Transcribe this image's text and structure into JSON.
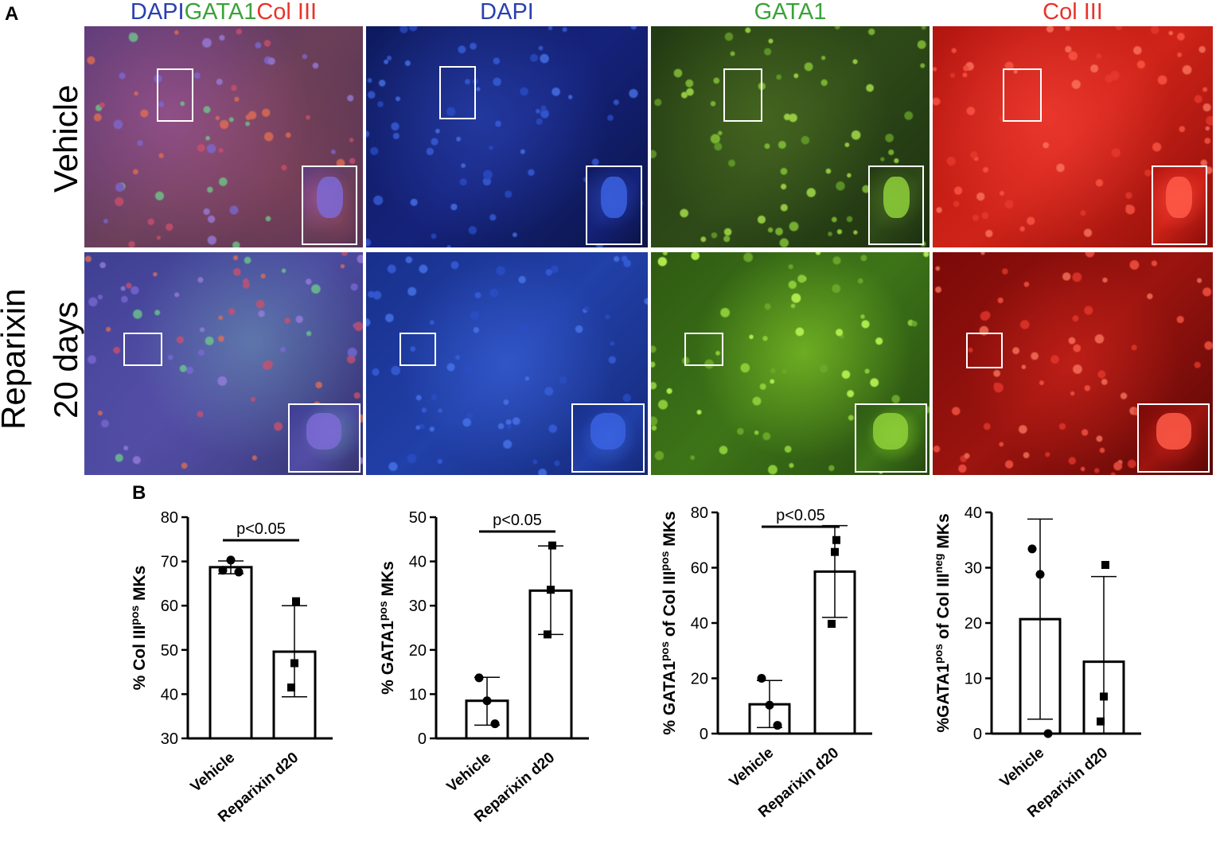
{
  "panel_a_label": "A",
  "panel_b_label": "B",
  "headers": {
    "merge": {
      "dapi": "DAPI",
      "gata1": "GATA1",
      "col": "Col III"
    },
    "dapi": "DAPI",
    "gata1": "GATA1",
    "col": "Col III"
  },
  "channel_colors": {
    "dapi": "#2a3fb0",
    "gata1": "#3aa23a",
    "col": "#e8342a"
  },
  "rows": {
    "vehicle": "Vehicle",
    "reparixin_line1": "Reparixin",
    "reparixin_line2": "20 days"
  },
  "chart_data": [
    {
      "type": "bar",
      "title": "",
      "categories": [
        "Vehicle",
        "Reparixin d20"
      ],
      "values": [
        68.7,
        49.6
      ],
      "error_low": [
        67.2,
        39.4
      ],
      "error_high": [
        70.1,
        60.0
      ],
      "points": [
        [
          68.0,
          70.3,
          67.6
        ],
        [
          61.0,
          47.0,
          41.5
        ]
      ],
      "ylim": [
        30,
        80
      ],
      "yticks": [
        "30",
        "40",
        "50",
        "60",
        "70",
        "80"
      ],
      "ylabel_pre": "% Col III",
      "ylabel_sup": "pos",
      "ylabel_post": " MKs",
      "significance": "p<0.05"
    },
    {
      "type": "bar",
      "title": "",
      "categories": [
        "Vehicle",
        "Reparixin d20"
      ],
      "values": [
        8.5,
        33.4
      ],
      "error_low": [
        3.0,
        23.5
      ],
      "error_high": [
        13.8,
        43.5
      ],
      "points": [
        [
          13.7,
          8.5,
          3.3
        ],
        [
          43.6,
          33.6,
          23.5
        ]
      ],
      "ylim": [
        0,
        50
      ],
      "yticks": [
        "0",
        "10",
        "20",
        "30",
        "40",
        "50"
      ],
      "ylabel_pre": "% GATA1",
      "ylabel_sup": "pos",
      "ylabel_post": " MKs",
      "significance": "p<0.05"
    },
    {
      "type": "bar",
      "title": "",
      "categories": [
        "Vehicle",
        "Reparixin d20"
      ],
      "values": [
        10.6,
        58.6
      ],
      "error_low": [
        2.2,
        42.0
      ],
      "error_high": [
        19.2,
        75.2
      ],
      "points": [
        [
          20.0,
          10.3,
          3.0
        ],
        [
          70.0,
          65.7,
          39.7
        ]
      ],
      "ylim": [
        0,
        80
      ],
      "yticks": [
        "0",
        "20",
        "40",
        "60",
        "80"
      ],
      "ylabel_pre": "% GATA1",
      "ylabel_sup": "pos",
      "ylabel_post": " of Col III",
      "ylabel_sup2": "pos",
      "ylabel_post2": " MKs",
      "significance": "p<0.05"
    },
    {
      "type": "bar",
      "title": "",
      "categories": [
        "Vehicle",
        "Reparixin d20"
      ],
      "values": [
        20.7,
        13.0
      ],
      "error_low": [
        2.6,
        0
      ],
      "error_high": [
        38.8,
        28.4
      ],
      "points": [
        [
          33.4,
          28.8,
          0.0
        ],
        [
          30.5,
          6.7,
          2.2
        ]
      ],
      "ylim": [
        0,
        40
      ],
      "yticks": [
        "0",
        "10",
        "20",
        "30",
        "40"
      ],
      "ylabel_pre": "%GATA1",
      "ylabel_sup": "pos",
      "ylabel_post": " of Col III",
      "ylabel_sup2": "neg",
      "ylabel_post2": " MKs",
      "significance": ""
    }
  ]
}
